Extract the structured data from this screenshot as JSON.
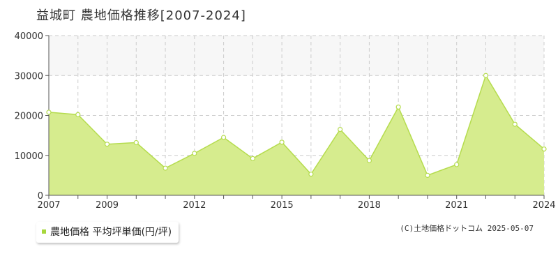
{
  "header": {
    "title": "益城町 農地価格推移[2007-2024]"
  },
  "legend": {
    "label": "農地価格 平均坪単価(円/坪)"
  },
  "footer": {
    "credit": "(C)土地価格ドットコム 2025-05-07"
  },
  "colors": {
    "fill": "#d6ec8e",
    "line": "#b5dc4e",
    "marker_stroke": "#b5dc4e",
    "legend_swatch": "#a7d73c",
    "grid": "#cccccc",
    "band": "#f7f7f7"
  },
  "chart_data": {
    "type": "area",
    "x": [
      2007,
      2008,
      2009,
      2010,
      2011,
      2012,
      2013,
      2014,
      2015,
      2016,
      2017,
      2018,
      2019,
      2020,
      2021,
      2022,
      2023,
      2024
    ],
    "series": [
      {
        "name": "農地価格 平均坪単価(円/坪)",
        "values": [
          20800,
          20200,
          12800,
          13200,
          6800,
          10500,
          14500,
          9200,
          13300,
          5300,
          16500,
          8700,
          22100,
          5000,
          7700,
          30000,
          17800,
          11600
        ]
      }
    ],
    "xticks": [
      "2007",
      "2009",
      "2012",
      "2015",
      "2018",
      "2021",
      "2024"
    ],
    "yticks": [
      "0",
      "10000",
      "20000",
      "30000",
      "40000"
    ],
    "ylim": [
      0,
      40000
    ],
    "xlim": [
      2007,
      2024
    ],
    "grid": true,
    "legend_position": "bottom-left"
  }
}
